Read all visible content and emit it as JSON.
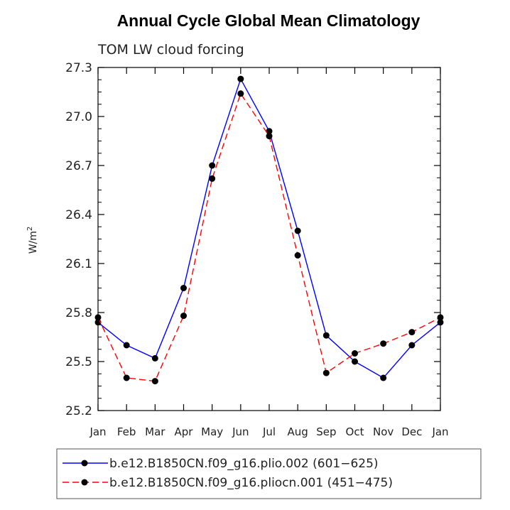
{
  "chart_data": {
    "type": "line",
    "title": "Annual Cycle Global Mean Climatology",
    "subtitle": "TOM LW cloud forcing",
    "xlabel": "",
    "ylabel": "W/m",
    "ylabel_superscript": "2",
    "categories": [
      "Jan",
      "Feb",
      "Mar",
      "Apr",
      "May",
      "Jun",
      "Jul",
      "Aug",
      "Sep",
      "Oct",
      "Nov",
      "Dec",
      "Jan"
    ],
    "ylim": [
      25.2,
      27.3
    ],
    "yticks": [
      25.2,
      25.5,
      25.8,
      26.1,
      26.4,
      26.7,
      27.0,
      27.3
    ],
    "ytick_labels": [
      "25.2",
      "25.5",
      "25.8",
      "26.1",
      "26.4",
      "26.7",
      "27.0",
      "27.3"
    ],
    "series": [
      {
        "name": "b.e12.B1850CN.f09_g16.plio.002 (601−625)",
        "color": "#0000ff",
        "dash": "solid",
        "values": [
          25.74,
          25.6,
          25.52,
          25.95,
          26.7,
          27.23,
          26.91,
          26.3,
          25.66,
          25.5,
          25.4,
          25.6,
          25.74
        ]
      },
      {
        "name": "b.e12.B1850CN.f09_g16.pliocn.001 (451−475)",
        "color": "#ff0000",
        "dash": "dashed",
        "values": [
          25.77,
          25.4,
          25.38,
          25.78,
          26.62,
          27.14,
          26.88,
          26.15,
          25.43,
          25.55,
          25.61,
          25.68,
          25.77
        ]
      }
    ]
  }
}
